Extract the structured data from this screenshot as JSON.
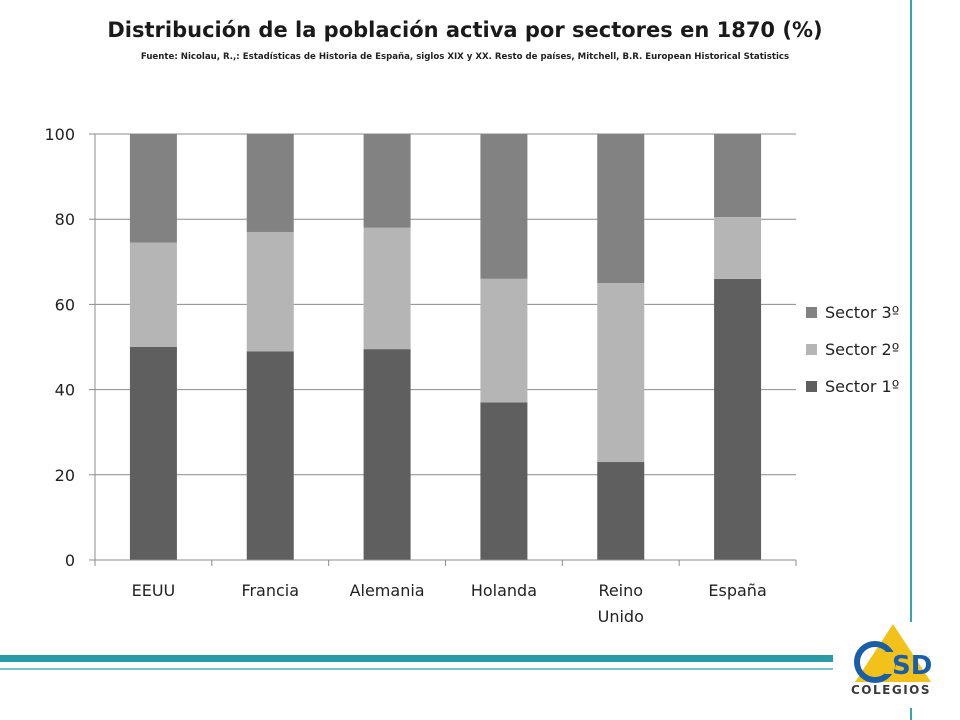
{
  "title": "Distribución de la población activa por sectores en 1870 (%)",
  "subtitle": "Fuente: Nicolau, R.,: Estadísticas de Historia de España, siglos XIX y XX. Resto de países, Mitchell, B.R. European Historical Statistics",
  "logo": {
    "text": "Colegios",
    "mark": "CSD"
  },
  "colors": {
    "sector1": "#5f5f5f",
    "sector2": "#b5b5b5",
    "sector3": "#828282",
    "accent_teal": "#2a9aa6",
    "accent_teal_light": "#7cc4cc",
    "logo_yellow": "#f2c21b",
    "logo_blue": "#1b5ea8"
  },
  "chart_data": {
    "type": "bar",
    "stacked": true,
    "categories": [
      "EEUU",
      "Francia",
      "Alemania",
      "Holanda",
      "Reino Unido",
      "España"
    ],
    "category_lines": [
      [
        "EEUU"
      ],
      [
        "Francia"
      ],
      [
        "Alemania"
      ],
      [
        "Holanda"
      ],
      [
        "Reino",
        "Unido"
      ],
      [
        "España"
      ]
    ],
    "series": [
      {
        "name": "Sector 1º",
        "values": [
          50,
          49,
          49.5,
          37,
          23,
          66
        ]
      },
      {
        "name": "Sector 2º",
        "values": [
          24.5,
          28,
          28.5,
          29,
          42,
          14.5
        ]
      },
      {
        "name": "Sector 3º",
        "values": [
          25.5,
          23,
          22,
          34,
          35,
          19.5
        ]
      }
    ],
    "ylim": [
      0,
      100
    ],
    "yticks": [
      0,
      20,
      40,
      60,
      80,
      100
    ],
    "grid": true,
    "legend": "right",
    "legend_order": [
      "Sector 3º",
      "Sector 2º",
      "Sector 1º"
    ]
  }
}
